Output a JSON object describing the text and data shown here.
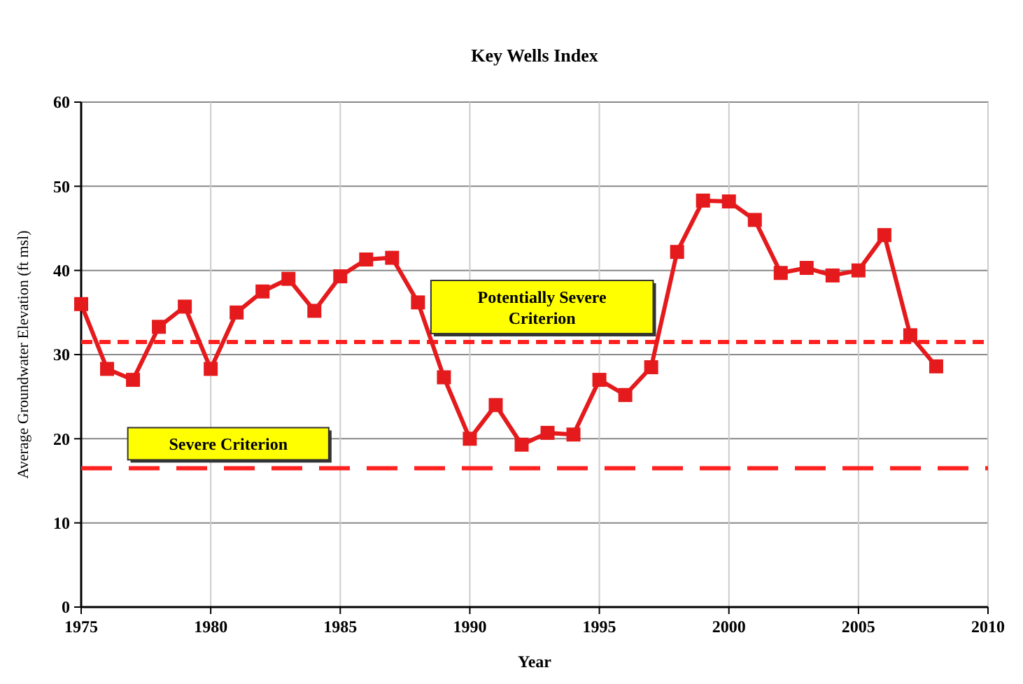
{
  "chart_data": {
    "type": "line",
    "title": "Key Wells Index",
    "xlabel": "Year",
    "ylabel": "Average Groundwater Elevation (ft msl)",
    "x": [
      1975,
      1976,
      1977,
      1978,
      1979,
      1980,
      1981,
      1982,
      1983,
      1984,
      1985,
      1986,
      1987,
      1988,
      1989,
      1990,
      1991,
      1992,
      1993,
      1994,
      1995,
      1996,
      1997,
      1998,
      1999,
      2000,
      2001,
      2002,
      2003,
      2004,
      2005,
      2006,
      2007,
      2008
    ],
    "series": [
      {
        "color": "#e41a1c",
        "values": [
          36,
          28.3,
          27,
          33.3,
          35.7,
          28.3,
          35,
          37.5,
          39,
          35.2,
          39.3,
          41.3,
          41.5,
          36.2,
          27.3,
          20,
          24,
          19.3,
          20.7,
          20.5,
          27,
          25.2,
          28.5,
          42.2,
          48.3,
          48.2,
          46,
          39.7,
          40.3,
          39.4,
          40,
          44.2,
          32.3,
          28.6
        ]
      }
    ],
    "xlim": [
      1975,
      2010
    ],
    "xticks": [
      1975,
      1980,
      1985,
      1990,
      1995,
      2000,
      2005,
      2010
    ],
    "ylim": [
      0,
      60
    ],
    "yticks": [
      0,
      10,
      20,
      30,
      40,
      50,
      60
    ],
    "grid": true,
    "marker": "square",
    "line_style": "solid",
    "ref_lines": [
      {
        "axis": "y",
        "value": 31.5,
        "label": "Potentially Severe\nCriterion",
        "color": "#ff2020",
        "line_style": "dotted"
      },
      {
        "axis": "y",
        "value": 16.5,
        "label": "Severe Criterion",
        "color": "#ff2020",
        "line_style": "dashed"
      }
    ]
  }
}
